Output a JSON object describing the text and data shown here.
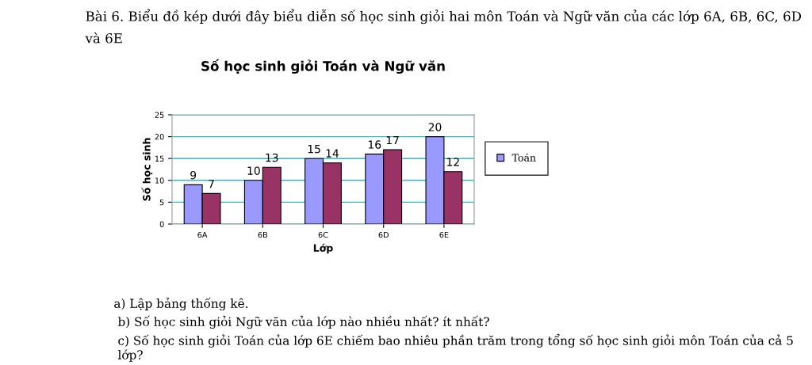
{
  "chart_data": {
    "type": "bar",
    "title": "Số học sinh giỏi Toán và Ngữ văn",
    "xlabel": "Lớp",
    "ylabel": "Số học sinh",
    "categories": [
      "6A",
      "6B",
      "6C",
      "6D",
      "6E"
    ],
    "series": [
      {
        "name": "Toán",
        "color": "#9999ff",
        "values": [
          9,
          10,
          15,
          16,
          20
        ]
      },
      {
        "color": "#993366",
        "values": [
          7,
          13,
          14,
          17,
          12
        ]
      }
    ],
    "ylim": [
      0,
      25
    ],
    "yticks": [
      0,
      5,
      10,
      15,
      20,
      25
    ],
    "grid": "y",
    "legend": "right",
    "data_labels": true,
    "annotations": [
      "Bài 6. Biểu đồ kép dưới đây biểu diễn số học sinh giỏi hai môn Toán và Ngữ văn của các lớp 6A, 6B, 6C, 6D và 6E",
      "a) Lập bảng thống kê.",
      "b) Số học sinh giỏi Ngữ văn của lớp nào nhiều nhất? ít nhất?",
      "c) Số học sinh giỏi Toán của lớp 6E chiếm bao nhiêu phần trăm trong tổng số học sinh giỏi môn Toán của cả 5 lớp?"
    ]
  }
}
